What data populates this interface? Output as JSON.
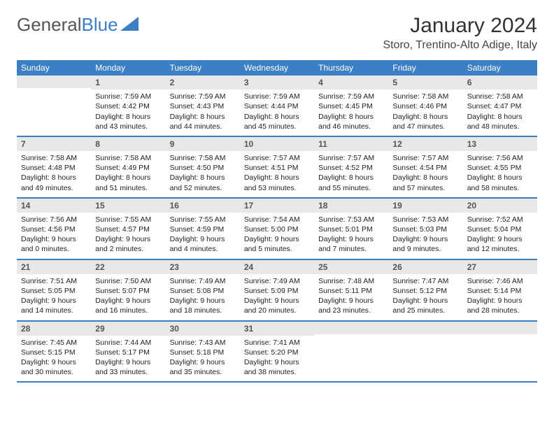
{
  "logo": {
    "text_gray": "General",
    "text_blue": "Blue"
  },
  "header": {
    "month_title": "January 2024",
    "location": "Storo, Trentino-Alto Adige, Italy"
  },
  "colors": {
    "header_bg": "#3b7fc4",
    "daynum_bg": "#e8e8e8",
    "text": "#222222",
    "weekday_text": "#ffffff"
  },
  "weekdays": [
    "Sunday",
    "Monday",
    "Tuesday",
    "Wednesday",
    "Thursday",
    "Friday",
    "Saturday"
  ],
  "weeks": [
    [
      {
        "n": "",
        "sunrise": "",
        "sunset": "",
        "daylight1": "",
        "daylight2": ""
      },
      {
        "n": "1",
        "sunrise": "Sunrise: 7:59 AM",
        "sunset": "Sunset: 4:42 PM",
        "daylight1": "Daylight: 8 hours",
        "daylight2": "and 43 minutes."
      },
      {
        "n": "2",
        "sunrise": "Sunrise: 7:59 AM",
        "sunset": "Sunset: 4:43 PM",
        "daylight1": "Daylight: 8 hours",
        "daylight2": "and 44 minutes."
      },
      {
        "n": "3",
        "sunrise": "Sunrise: 7:59 AM",
        "sunset": "Sunset: 4:44 PM",
        "daylight1": "Daylight: 8 hours",
        "daylight2": "and 45 minutes."
      },
      {
        "n": "4",
        "sunrise": "Sunrise: 7:59 AM",
        "sunset": "Sunset: 4:45 PM",
        "daylight1": "Daylight: 8 hours",
        "daylight2": "and 46 minutes."
      },
      {
        "n": "5",
        "sunrise": "Sunrise: 7:58 AM",
        "sunset": "Sunset: 4:46 PM",
        "daylight1": "Daylight: 8 hours",
        "daylight2": "and 47 minutes."
      },
      {
        "n": "6",
        "sunrise": "Sunrise: 7:58 AM",
        "sunset": "Sunset: 4:47 PM",
        "daylight1": "Daylight: 8 hours",
        "daylight2": "and 48 minutes."
      }
    ],
    [
      {
        "n": "7",
        "sunrise": "Sunrise: 7:58 AM",
        "sunset": "Sunset: 4:48 PM",
        "daylight1": "Daylight: 8 hours",
        "daylight2": "and 49 minutes."
      },
      {
        "n": "8",
        "sunrise": "Sunrise: 7:58 AM",
        "sunset": "Sunset: 4:49 PM",
        "daylight1": "Daylight: 8 hours",
        "daylight2": "and 51 minutes."
      },
      {
        "n": "9",
        "sunrise": "Sunrise: 7:58 AM",
        "sunset": "Sunset: 4:50 PM",
        "daylight1": "Daylight: 8 hours",
        "daylight2": "and 52 minutes."
      },
      {
        "n": "10",
        "sunrise": "Sunrise: 7:57 AM",
        "sunset": "Sunset: 4:51 PM",
        "daylight1": "Daylight: 8 hours",
        "daylight2": "and 53 minutes."
      },
      {
        "n": "11",
        "sunrise": "Sunrise: 7:57 AM",
        "sunset": "Sunset: 4:52 PM",
        "daylight1": "Daylight: 8 hours",
        "daylight2": "and 55 minutes."
      },
      {
        "n": "12",
        "sunrise": "Sunrise: 7:57 AM",
        "sunset": "Sunset: 4:54 PM",
        "daylight1": "Daylight: 8 hours",
        "daylight2": "and 57 minutes."
      },
      {
        "n": "13",
        "sunrise": "Sunrise: 7:56 AM",
        "sunset": "Sunset: 4:55 PM",
        "daylight1": "Daylight: 8 hours",
        "daylight2": "and 58 minutes."
      }
    ],
    [
      {
        "n": "14",
        "sunrise": "Sunrise: 7:56 AM",
        "sunset": "Sunset: 4:56 PM",
        "daylight1": "Daylight: 9 hours",
        "daylight2": "and 0 minutes."
      },
      {
        "n": "15",
        "sunrise": "Sunrise: 7:55 AM",
        "sunset": "Sunset: 4:57 PM",
        "daylight1": "Daylight: 9 hours",
        "daylight2": "and 2 minutes."
      },
      {
        "n": "16",
        "sunrise": "Sunrise: 7:55 AM",
        "sunset": "Sunset: 4:59 PM",
        "daylight1": "Daylight: 9 hours",
        "daylight2": "and 4 minutes."
      },
      {
        "n": "17",
        "sunrise": "Sunrise: 7:54 AM",
        "sunset": "Sunset: 5:00 PM",
        "daylight1": "Daylight: 9 hours",
        "daylight2": "and 5 minutes."
      },
      {
        "n": "18",
        "sunrise": "Sunrise: 7:53 AM",
        "sunset": "Sunset: 5:01 PM",
        "daylight1": "Daylight: 9 hours",
        "daylight2": "and 7 minutes."
      },
      {
        "n": "19",
        "sunrise": "Sunrise: 7:53 AM",
        "sunset": "Sunset: 5:03 PM",
        "daylight1": "Daylight: 9 hours",
        "daylight2": "and 9 minutes."
      },
      {
        "n": "20",
        "sunrise": "Sunrise: 7:52 AM",
        "sunset": "Sunset: 5:04 PM",
        "daylight1": "Daylight: 9 hours",
        "daylight2": "and 12 minutes."
      }
    ],
    [
      {
        "n": "21",
        "sunrise": "Sunrise: 7:51 AM",
        "sunset": "Sunset: 5:05 PM",
        "daylight1": "Daylight: 9 hours",
        "daylight2": "and 14 minutes."
      },
      {
        "n": "22",
        "sunrise": "Sunrise: 7:50 AM",
        "sunset": "Sunset: 5:07 PM",
        "daylight1": "Daylight: 9 hours",
        "daylight2": "and 16 minutes."
      },
      {
        "n": "23",
        "sunrise": "Sunrise: 7:49 AM",
        "sunset": "Sunset: 5:08 PM",
        "daylight1": "Daylight: 9 hours",
        "daylight2": "and 18 minutes."
      },
      {
        "n": "24",
        "sunrise": "Sunrise: 7:49 AM",
        "sunset": "Sunset: 5:09 PM",
        "daylight1": "Daylight: 9 hours",
        "daylight2": "and 20 minutes."
      },
      {
        "n": "25",
        "sunrise": "Sunrise: 7:48 AM",
        "sunset": "Sunset: 5:11 PM",
        "daylight1": "Daylight: 9 hours",
        "daylight2": "and 23 minutes."
      },
      {
        "n": "26",
        "sunrise": "Sunrise: 7:47 AM",
        "sunset": "Sunset: 5:12 PM",
        "daylight1": "Daylight: 9 hours",
        "daylight2": "and 25 minutes."
      },
      {
        "n": "27",
        "sunrise": "Sunrise: 7:46 AM",
        "sunset": "Sunset: 5:14 PM",
        "daylight1": "Daylight: 9 hours",
        "daylight2": "and 28 minutes."
      }
    ],
    [
      {
        "n": "28",
        "sunrise": "Sunrise: 7:45 AM",
        "sunset": "Sunset: 5:15 PM",
        "daylight1": "Daylight: 9 hours",
        "daylight2": "and 30 minutes."
      },
      {
        "n": "29",
        "sunrise": "Sunrise: 7:44 AM",
        "sunset": "Sunset: 5:17 PM",
        "daylight1": "Daylight: 9 hours",
        "daylight2": "and 33 minutes."
      },
      {
        "n": "30",
        "sunrise": "Sunrise: 7:43 AM",
        "sunset": "Sunset: 5:18 PM",
        "daylight1": "Daylight: 9 hours",
        "daylight2": "and 35 minutes."
      },
      {
        "n": "31",
        "sunrise": "Sunrise: 7:41 AM",
        "sunset": "Sunset: 5:20 PM",
        "daylight1": "Daylight: 9 hours",
        "daylight2": "and 38 minutes."
      },
      {
        "n": "",
        "sunrise": "",
        "sunset": "",
        "daylight1": "",
        "daylight2": ""
      },
      {
        "n": "",
        "sunrise": "",
        "sunset": "",
        "daylight1": "",
        "daylight2": ""
      },
      {
        "n": "",
        "sunrise": "",
        "sunset": "",
        "daylight1": "",
        "daylight2": ""
      }
    ]
  ]
}
